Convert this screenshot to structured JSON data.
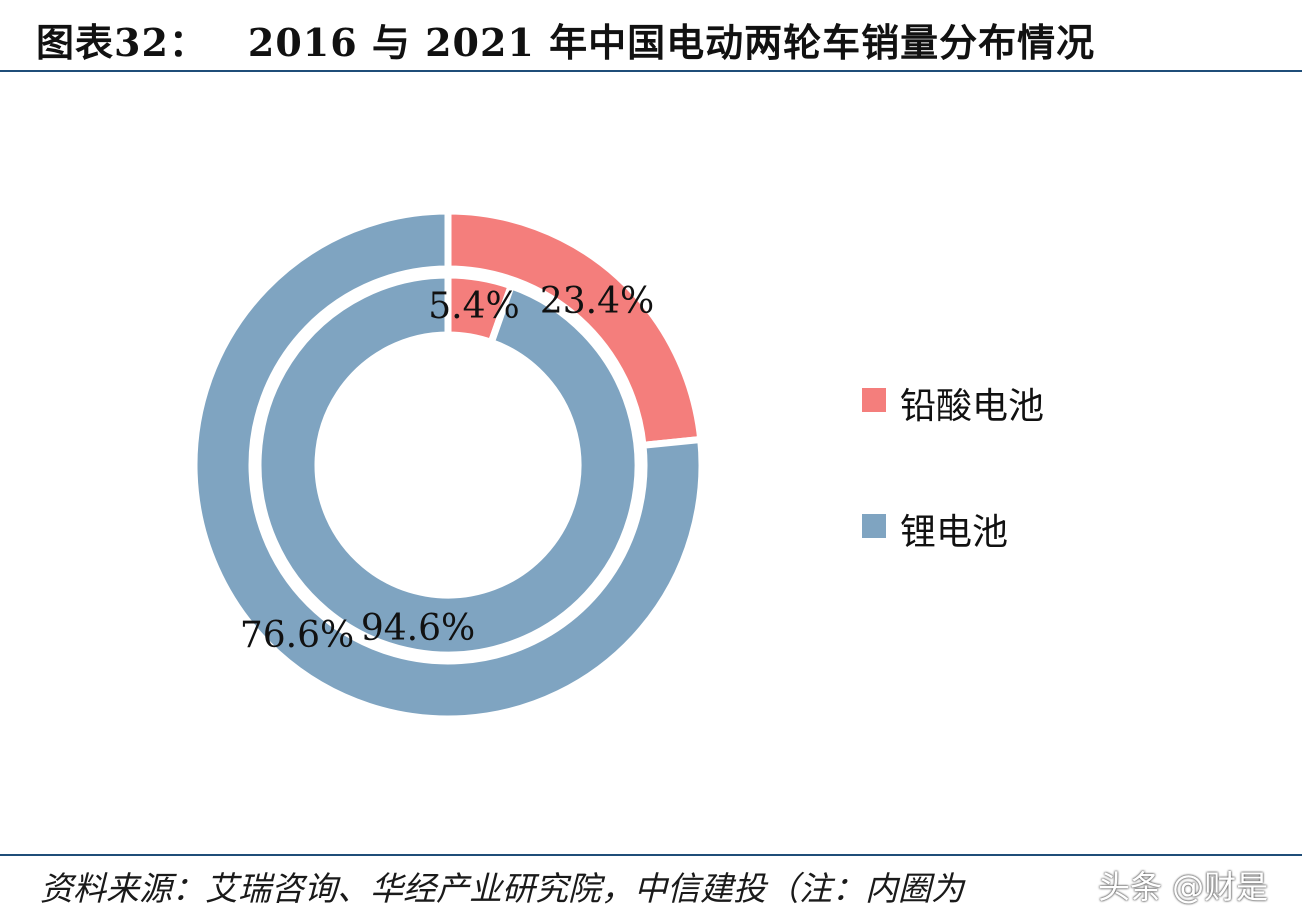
{
  "header": {
    "figure_label": "图表32：",
    "title": "2016 与 2021 年中国电动两轮车销量分布情况"
  },
  "chart_data": {
    "type": "donut",
    "series": [
      {
        "name": "2016",
        "ring": "inner",
        "values": [
          5.4,
          94.6
        ],
        "labels": [
          "5.4%",
          "94.6%"
        ]
      },
      {
        "name": "2021",
        "ring": "outer",
        "values": [
          23.4,
          76.6
        ],
        "labels": [
          "23.4%",
          "76.6%"
        ]
      }
    ],
    "categories": [
      "铅酸电池",
      "锂电池"
    ],
    "legend": {
      "position": "right",
      "entries": [
        "铅酸电池",
        "锂电池"
      ]
    },
    "colors": [
      "#f47e7c",
      "#7fa4c1"
    ]
  },
  "footer": {
    "source": "资料来源：艾瑞咨询、华经产业研究院，中信建投（注：内圈为",
    "watermark": "头条 @财是"
  }
}
